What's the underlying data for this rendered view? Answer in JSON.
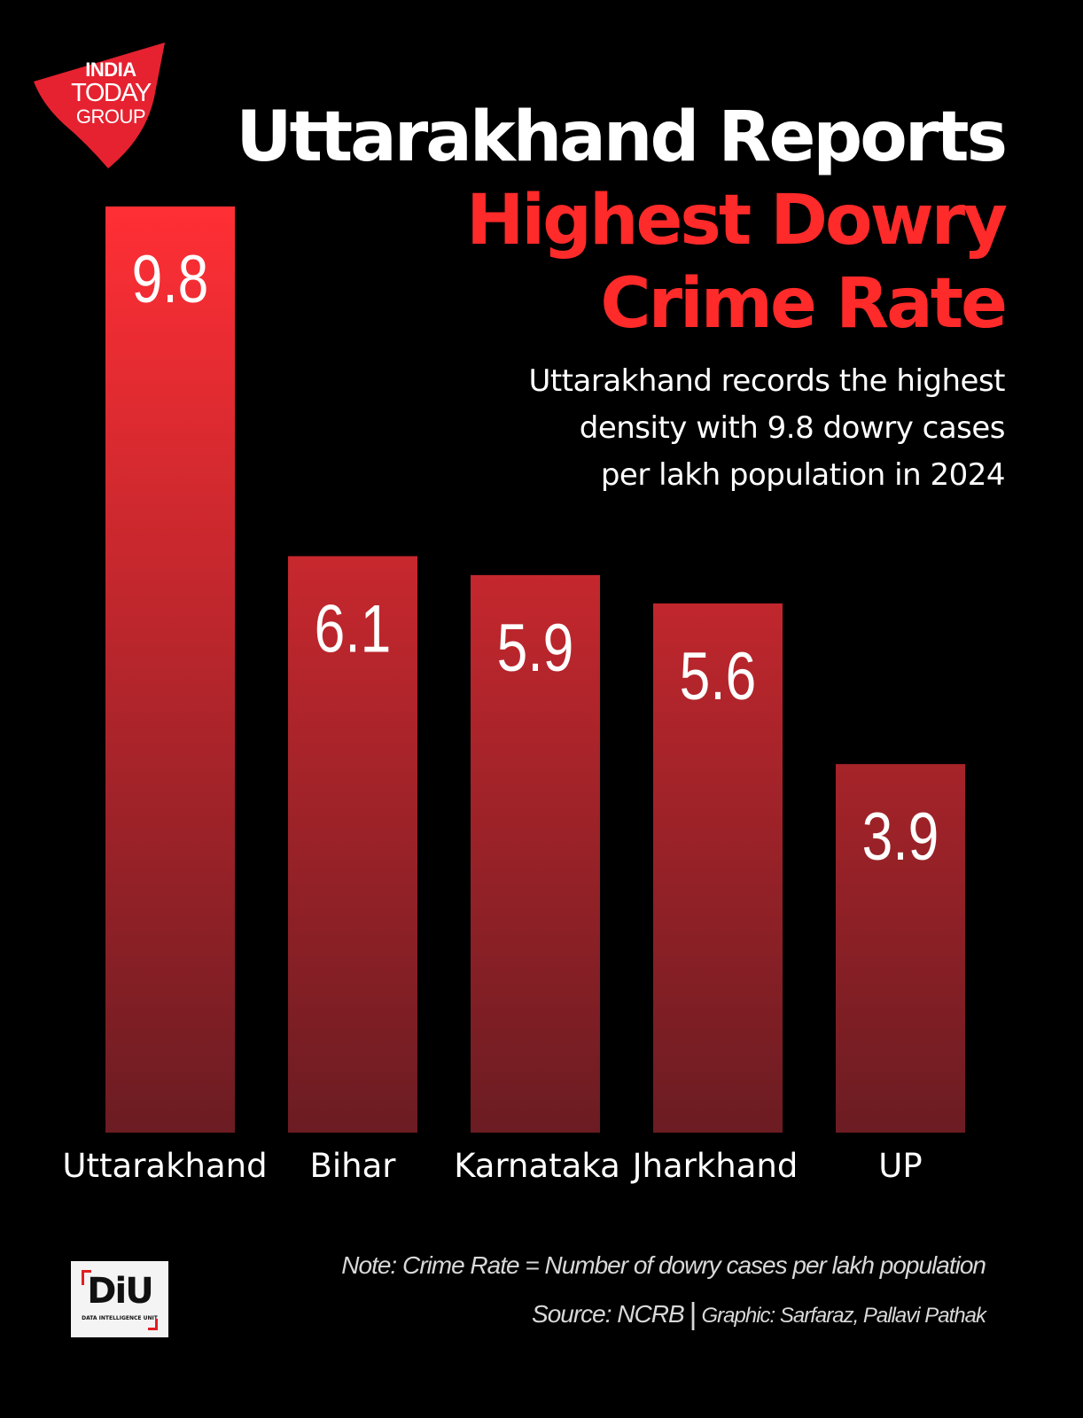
{
  "logo": {
    "line1": "INDIA",
    "line2": "TODAY",
    "line3": "GROUP",
    "color": "#e62230"
  },
  "headline": {
    "line1": "Uttarakhand Reports",
    "line2": "Highest Dowry",
    "line3": "Crime Rate"
  },
  "subtitle": "Uttarakhand records the highest\ndensity with 9.8 dowry cases\nper lakh population in 2024",
  "colors": {
    "background": "#000000",
    "accent": "#ff2a2a",
    "bar_top": "#ff2f35",
    "bar_bottom": "#6b1c22"
  },
  "chart_data": {
    "type": "bar",
    "categories": [
      "Uttarakhand",
      "Bihar",
      "Karnataka",
      "Jharkhand",
      "UP"
    ],
    "values": [
      9.8,
      6.1,
      5.9,
      5.6,
      3.9
    ],
    "value_labels": [
      "9.8",
      "6.1",
      "5.9",
      "5.6",
      "3.9"
    ],
    "title": "",
    "xlabel": "",
    "ylabel": "",
    "ylim": [
      0,
      9.8
    ],
    "grid": false,
    "legend": "none"
  },
  "footer": {
    "diu_logo": "DiU",
    "diu_sub": "DATA INTELLIGENCE UNIT",
    "note": "Note: Crime Rate = Number of dowry cases per lakh population",
    "source": "Source: NCRB",
    "separator": "|",
    "graphic": "Graphic: Sarfaraz, Pallavi Pathak"
  }
}
